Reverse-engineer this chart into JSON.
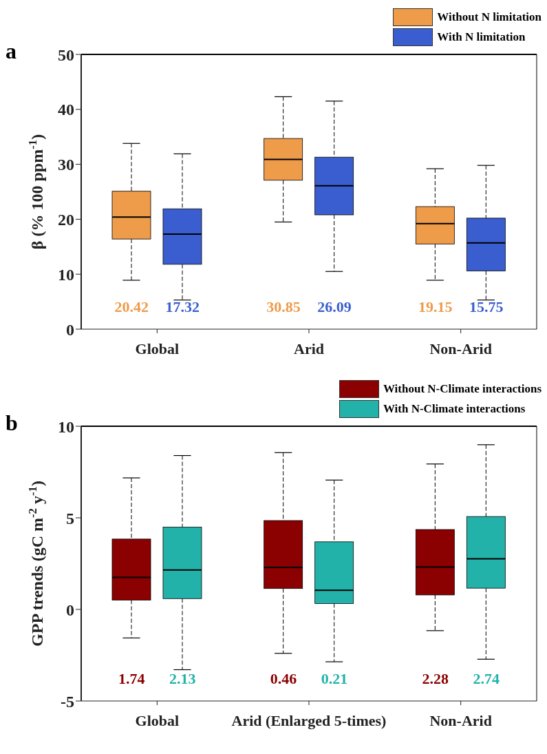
{
  "chart_data": [
    {
      "type": "box",
      "title": "a",
      "ylabel": "β (% 100 ppm$^{-1}$)",
      "categories": [
        "Global",
        "Arid",
        "Non-Arid"
      ],
      "ylim": [
        0,
        50
      ],
      "yticks": [
        0,
        10,
        20,
        30,
        40,
        50
      ],
      "legend": "top right",
      "grid": false,
      "series": [
        {
          "name": "Without N limitation",
          "color": "#ee9b4a",
          "boxes": [
            {
              "low": 8.9,
              "q1": 16.4,
              "median": 20.4,
              "q3": 25.1,
              "high": 33.8
            },
            {
              "low": 19.5,
              "q1": 27.1,
              "median": 30.9,
              "q3": 34.7,
              "high": 42.3
            },
            {
              "low": 8.9,
              "q1": 15.5,
              "median": 19.2,
              "q3": 22.3,
              "high": 29.2
            }
          ]
        },
        {
          "name": "With N limitation",
          "color": "#3a5ecf",
          "boxes": [
            {
              "low": 5.3,
              "q1": 11.8,
              "median": 17.3,
              "q3": 21.9,
              "high": 31.9
            },
            {
              "low": 10.5,
              "q1": 20.8,
              "median": 26.1,
              "q3": 31.3,
              "high": 41.5
            },
            {
              "low": 5.3,
              "q1": 10.6,
              "median": 15.7,
              "q3": 20.2,
              "high": 29.8
            }
          ]
        }
      ],
      "annotations": [
        "20.42",
        "17.32",
        "30.85",
        "26.09",
        "19.15",
        "15.75"
      ]
    },
    {
      "type": "box",
      "title": "b",
      "ylabel": "GPP trends (gC m$^{-2}$ y$^{-1}$)",
      "categories": [
        "Global",
        "Arid (Enlarged 5-times)",
        "Non-Arid"
      ],
      "ylim": [
        -5,
        10
      ],
      "yticks": [
        -5,
        0,
        5,
        10
      ],
      "legend": "top right",
      "grid": false,
      "series": [
        {
          "name": "Without N-Climate interactions",
          "color": "#8b0000",
          "boxes": [
            {
              "low": -1.56,
              "q1": 0.51,
              "median": 1.75,
              "q3": 3.84,
              "high": 7.18
            },
            {
              "low": -2.4,
              "q1": 1.14,
              "median": 2.29,
              "q3": 4.85,
              "high": 8.56
            },
            {
              "low": -1.16,
              "q1": 0.79,
              "median": 2.31,
              "q3": 4.36,
              "high": 7.94
            }
          ]
        },
        {
          "name": "With N-Climate interactions",
          "color": "#22b2aa",
          "boxes": [
            {
              "low": -3.29,
              "q1": 0.59,
              "median": 2.15,
              "q3": 4.49,
              "high": 8.4
            },
            {
              "low": -2.86,
              "q1": 0.32,
              "median": 1.04,
              "q3": 3.69,
              "high": 7.06
            },
            {
              "low": -2.72,
              "q1": 1.16,
              "median": 2.76,
              "q3": 5.07,
              "high": 8.99
            }
          ]
        }
      ],
      "annotations": [
        "1.74",
        "2.13",
        "0.46",
        "0.21",
        "2.28",
        "2.74"
      ]
    }
  ]
}
